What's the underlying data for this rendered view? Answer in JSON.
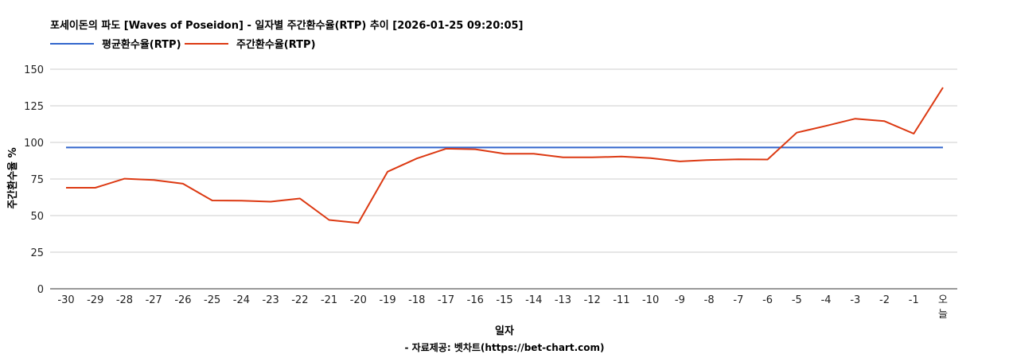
{
  "colors": {
    "average": "#3366cc",
    "weekly": "#dc3912",
    "grid": "#cccccc",
    "baseline": "#333333"
  },
  "chart_data": {
    "type": "line",
    "title": "포세이돈의 파도 [Waves of Poseidon] - 일자별 주간환수율(RTP) 추이 [2026-01-25 09:20:05]",
    "xlabel": "일자",
    "ylabel": "주간환수율 %",
    "footer": "- 자료제공: 벳차트(https://bet-chart.com)",
    "legend_position": "top-left",
    "grid": true,
    "ylim": [
      0,
      150
    ],
    "yticks": [
      "0",
      "25",
      "50",
      "75",
      "100",
      "125",
      "150"
    ],
    "categories": [
      "-30",
      "-29",
      "-28",
      "-27",
      "-26",
      "-25",
      "-24",
      "-23",
      "-22",
      "-21",
      "-20",
      "-19",
      "-18",
      "-17",
      "-16",
      "-15",
      "-14",
      "-13",
      "-12",
      "-11",
      "-10",
      "-9",
      "-8",
      "-7",
      "-6",
      "-5",
      "-4",
      "-3",
      "-2",
      "-1",
      "오늘"
    ],
    "series": [
      {
        "name": "평균환수율(RTP)",
        "color_key": "average",
        "values": [
          96.5,
          96.5,
          96.5,
          96.5,
          96.5,
          96.5,
          96.5,
          96.5,
          96.5,
          96.5,
          96.5,
          96.5,
          96.5,
          96.5,
          96.5,
          96.5,
          96.5,
          96.5,
          96.5,
          96.5,
          96.5,
          96.5,
          96.5,
          96.5,
          96.5,
          96.5,
          96.5,
          96.5,
          96.5,
          96.5,
          96.5
        ]
      },
      {
        "name": "주간환수율(RTP)",
        "color_key": "weekly",
        "values": [
          69,
          69,
          75.2,
          74.3,
          71.8,
          60.3,
          60.2,
          59.5,
          61.7,
          47,
          45,
          80,
          89,
          95.7,
          95.3,
          92.3,
          92.3,
          89.8,
          89.8,
          90.3,
          89.3,
          87,
          88,
          88.5,
          88.3,
          106.7,
          111.3,
          116.2,
          114.5,
          106,
          137.5
        ]
      }
    ]
  }
}
